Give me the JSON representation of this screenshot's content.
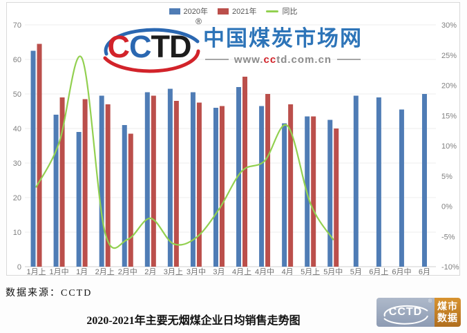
{
  "accent_colors": {
    "bar_2020": "#4f7cb5",
    "bar_2021": "#bb4f4b",
    "yoy_line": "#92d050",
    "gridline": "#ececec",
    "axis_text": "#7f7f7f",
    "site_blue": "#2d74b8",
    "logo_red": "#d2232a",
    "logo_blue": "#2a67b1",
    "logo_dark": "#1c1c1c"
  },
  "watermark": {
    "letters": [
      {
        "ch": "C",
        "color": "#d2232a"
      },
      {
        "ch": "C",
        "color": "#2a67b1"
      },
      {
        "ch": "T",
        "color": "#1c1c1c"
      },
      {
        "ch": "D",
        "color": "#1c1c1c"
      }
    ],
    "registered_mark": "®",
    "site_name": "中国煤炭市场网",
    "url_prefix": "www.",
    "url_cc": "cc",
    "url_suffix": "td.com.cn"
  },
  "chart_data": {
    "type": "bar",
    "title": "2020-2021年主要无烟煤企业日均销售走势图",
    "legend_position": "top",
    "grid": true,
    "categories": [
      "1月上",
      "1月中",
      "1月",
      "2月上",
      "2月中",
      "2月",
      "3月上",
      "3月中",
      "3月",
      "4月上",
      "4月中",
      "4月",
      "5月上",
      "5月中",
      "5月",
      "6月上",
      "6月中",
      "6月"
    ],
    "series": [
      {
        "name": "2020年",
        "type": "bar",
        "color": "#4f7cb5",
        "values": [
          62.5,
          44,
          39,
          49.5,
          41,
          50.5,
          51.5,
          50.5,
          46,
          52,
          46.5,
          41.5,
          43.5,
          42.5,
          49.5,
          49,
          45.5,
          50
        ]
      },
      {
        "name": "2021年",
        "type": "bar",
        "color": "#bb4f4b",
        "values": [
          64.5,
          49,
          48.5,
          47,
          38.5,
          49.5,
          48,
          47.5,
          46.5,
          55,
          50,
          47,
          43.5,
          40,
          null,
          null,
          null,
          null
        ]
      },
      {
        "name": "同比",
        "type": "line",
        "axis": "right",
        "color": "#92d050",
        "values": [
          3.2,
          10.5,
          24.5,
          -4.2,
          -5.5,
          -2,
          -6.2,
          -5.2,
          -0.5,
          5.8,
          7.5,
          13.3,
          0.5,
          -5.5,
          null,
          null,
          null,
          null
        ]
      }
    ],
    "left_axis": {
      "min": 0,
      "max": 70,
      "ticks": [
        "70",
        "60",
        "50",
        "40",
        "30",
        "20",
        "10",
        "0"
      ]
    },
    "right_axis": {
      "min": -10,
      "max": 30,
      "ticks": [
        "30%",
        "25%",
        "20%",
        "15%",
        "10%",
        "5%",
        "0%",
        "-5%",
        "-10%"
      ]
    }
  },
  "footer": {
    "source": "数据来源：CCTD",
    "title": "2020-2021年主要无烟煤企业日均销售走势图"
  },
  "badge": {
    "cctd": "CCTD",
    "registered_mark": "®",
    "line1": "煤市",
    "line2": "数据"
  }
}
